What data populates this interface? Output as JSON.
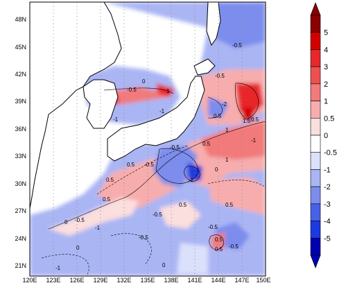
{
  "map": {
    "lat_ticks": [
      "48N",
      "45N",
      "42N",
      "39N",
      "36N",
      "33N",
      "30N",
      "27N",
      "24N",
      "21N"
    ],
    "lon_ticks": [
      "120E",
      "123E",
      "126E",
      "129E",
      "132E",
      "135E",
      "138E",
      "141E",
      "144E",
      "147E",
      "150E"
    ],
    "extent": {
      "lon": [
        120,
        150
      ],
      "lat": [
        20,
        50
      ]
    },
    "contour_labels": [
      "-0.5",
      "-0.5",
      "-0.5",
      "-1",
      "-1",
      "-2",
      "-1",
      "-0.5",
      "-0.5",
      "-0.5",
      "-0.5",
      "0.5",
      "0.5",
      "0.5",
      "0.5",
      "0.5",
      "0.5",
      "0.5",
      "0.5",
      "0",
      "0",
      "0",
      "0",
      "1",
      "1",
      "1",
      "1.5",
      "-0.5",
      "-0.5",
      "-0.5",
      "0.5",
      "0.5",
      "-1",
      "-1",
      "-1",
      "0"
    ]
  },
  "colorbar": {
    "levels": [
      "5",
      "4",
      "3",
      "2",
      "1",
      "0.5",
      "0",
      "-0.5",
      "-1",
      "-2",
      "-3",
      "-4",
      "-5"
    ],
    "colors": [
      "#8b0000",
      "#d40000",
      "#e8282a",
      "#ee5050",
      "#f27a7a",
      "#f7adad",
      "#fbdede",
      "#ffffff",
      "#dbe0fb",
      "#aab5f4",
      "#7d8ded",
      "#4a60e6",
      "#1c3adf",
      "#0000b0"
    ]
  }
}
